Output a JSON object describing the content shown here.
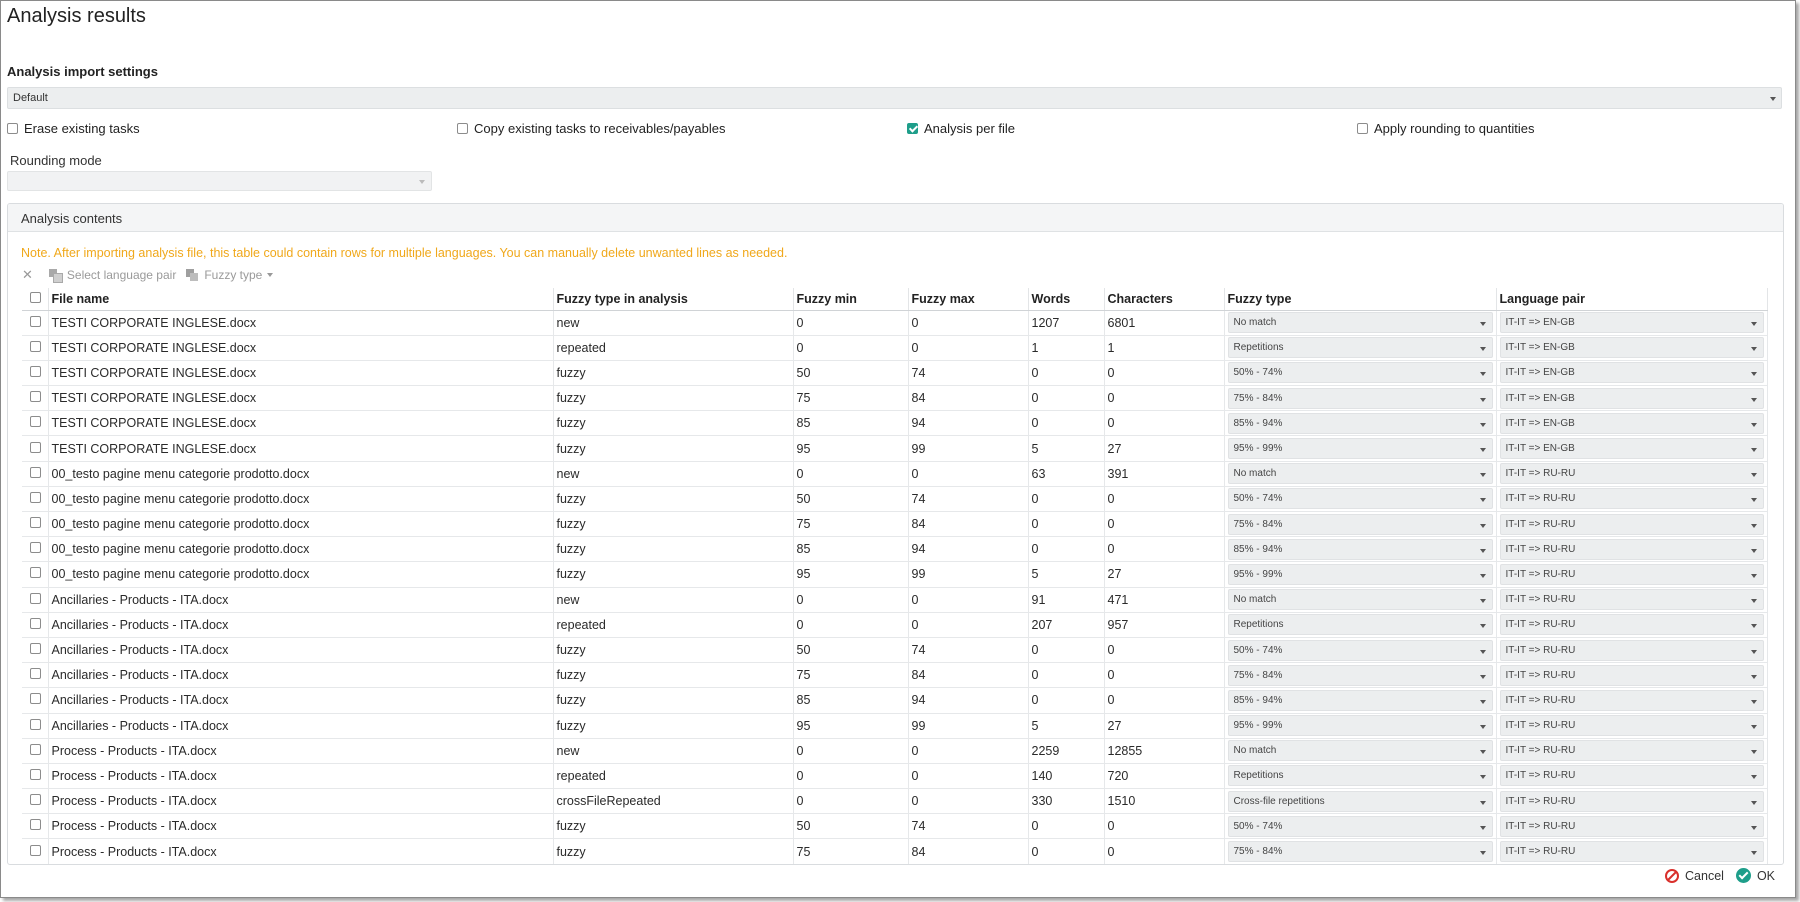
{
  "title": "Analysis results",
  "import_settings": {
    "label": "Analysis import settings",
    "value": "Default"
  },
  "options": {
    "erase_existing_tasks": {
      "label": "Erase existing tasks",
      "checked": false
    },
    "copy_existing_tasks": {
      "label": "Copy existing tasks to receivables/payables",
      "checked": false
    },
    "analysis_per_file": {
      "label": "Analysis per file",
      "checked": true
    },
    "apply_rounding": {
      "label": "Apply rounding to quantities",
      "checked": false
    }
  },
  "rounding_mode": {
    "label": "Rounding mode",
    "value": ""
  },
  "analysis_contents": {
    "header": "Analysis contents",
    "note": "Note. After importing analysis file, this table could contain rows for multiple languages. You can manually delete unwanted lines as needed.",
    "toolbar": {
      "delete_icon": "close-icon",
      "select_language_pair": "Select language pair",
      "fuzzy_type": "Fuzzy type"
    },
    "columns": [
      "File name",
      "Fuzzy type in analysis",
      "Fuzzy min",
      "Fuzzy max",
      "Words",
      "Characters",
      "Fuzzy type",
      "Language pair"
    ],
    "rows": [
      {
        "file": "TESTI CORPORATE INGLESE.docx",
        "analysis": "new",
        "min": "0",
        "max": "0",
        "words": "1207",
        "chars": "6801",
        "fuzzy_type": "No match",
        "lang": "IT-IT => EN-GB"
      },
      {
        "file": "TESTI CORPORATE INGLESE.docx",
        "analysis": "repeated",
        "min": "0",
        "max": "0",
        "words": "1",
        "chars": "1",
        "fuzzy_type": "Repetitions",
        "lang": "IT-IT => EN-GB"
      },
      {
        "file": "TESTI CORPORATE INGLESE.docx",
        "analysis": "fuzzy",
        "min": "50",
        "max": "74",
        "words": "0",
        "chars": "0",
        "fuzzy_type": "50% - 74%",
        "lang": "IT-IT => EN-GB"
      },
      {
        "file": "TESTI CORPORATE INGLESE.docx",
        "analysis": "fuzzy",
        "min": "75",
        "max": "84",
        "words": "0",
        "chars": "0",
        "fuzzy_type": "75% - 84%",
        "lang": "IT-IT => EN-GB"
      },
      {
        "file": "TESTI CORPORATE INGLESE.docx",
        "analysis": "fuzzy",
        "min": "85",
        "max": "94",
        "words": "0",
        "chars": "0",
        "fuzzy_type": "85% - 94%",
        "lang": "IT-IT => EN-GB"
      },
      {
        "file": "TESTI CORPORATE INGLESE.docx",
        "analysis": "fuzzy",
        "min": "95",
        "max": "99",
        "words": "5",
        "chars": "27",
        "fuzzy_type": "95% - 99%",
        "lang": "IT-IT => EN-GB"
      },
      {
        "file": "00_testo pagine menu categorie prodotto.docx",
        "analysis": "new",
        "min": "0",
        "max": "0",
        "words": "63",
        "chars": "391",
        "fuzzy_type": "No match",
        "lang": "IT-IT => RU-RU"
      },
      {
        "file": "00_testo pagine menu categorie prodotto.docx",
        "analysis": "fuzzy",
        "min": "50",
        "max": "74",
        "words": "0",
        "chars": "0",
        "fuzzy_type": "50% - 74%",
        "lang": "IT-IT => RU-RU"
      },
      {
        "file": "00_testo pagine menu categorie prodotto.docx",
        "analysis": "fuzzy",
        "min": "75",
        "max": "84",
        "words": "0",
        "chars": "0",
        "fuzzy_type": "75% - 84%",
        "lang": "IT-IT => RU-RU"
      },
      {
        "file": "00_testo pagine menu categorie prodotto.docx",
        "analysis": "fuzzy",
        "min": "85",
        "max": "94",
        "words": "0",
        "chars": "0",
        "fuzzy_type": "85% - 94%",
        "lang": "IT-IT => RU-RU"
      },
      {
        "file": "00_testo pagine menu categorie prodotto.docx",
        "analysis": "fuzzy",
        "min": "95",
        "max": "99",
        "words": "5",
        "chars": "27",
        "fuzzy_type": "95% - 99%",
        "lang": "IT-IT => RU-RU"
      },
      {
        "file": "Ancillaries - Products - ITA.docx",
        "analysis": "new",
        "min": "0",
        "max": "0",
        "words": "91",
        "chars": "471",
        "fuzzy_type": "No match",
        "lang": "IT-IT => RU-RU"
      },
      {
        "file": "Ancillaries - Products - ITA.docx",
        "analysis": "repeated",
        "min": "0",
        "max": "0",
        "words": "207",
        "chars": "957",
        "fuzzy_type": "Repetitions",
        "lang": "IT-IT => RU-RU"
      },
      {
        "file": "Ancillaries - Products - ITA.docx",
        "analysis": "fuzzy",
        "min": "50",
        "max": "74",
        "words": "0",
        "chars": "0",
        "fuzzy_type": "50% - 74%",
        "lang": "IT-IT => RU-RU"
      },
      {
        "file": "Ancillaries - Products - ITA.docx",
        "analysis": "fuzzy",
        "min": "75",
        "max": "84",
        "words": "0",
        "chars": "0",
        "fuzzy_type": "75% - 84%",
        "lang": "IT-IT => RU-RU"
      },
      {
        "file": "Ancillaries - Products - ITA.docx",
        "analysis": "fuzzy",
        "min": "85",
        "max": "94",
        "words": "0",
        "chars": "0",
        "fuzzy_type": "85% - 94%",
        "lang": "IT-IT => RU-RU"
      },
      {
        "file": "Ancillaries - Products - ITA.docx",
        "analysis": "fuzzy",
        "min": "95",
        "max": "99",
        "words": "5",
        "chars": "27",
        "fuzzy_type": "95% - 99%",
        "lang": "IT-IT => RU-RU"
      },
      {
        "file": "Process - Products - ITA.docx",
        "analysis": "new",
        "min": "0",
        "max": "0",
        "words": "2259",
        "chars": "12855",
        "fuzzy_type": "No match",
        "lang": "IT-IT => RU-RU"
      },
      {
        "file": "Process - Products - ITA.docx",
        "analysis": "repeated",
        "min": "0",
        "max": "0",
        "words": "140",
        "chars": "720",
        "fuzzy_type": "Repetitions",
        "lang": "IT-IT => RU-RU"
      },
      {
        "file": "Process - Products - ITA.docx",
        "analysis": "crossFileRepeated",
        "min": "0",
        "max": "0",
        "words": "330",
        "chars": "1510",
        "fuzzy_type": "Cross-file repetitions",
        "lang": "IT-IT => RU-RU"
      },
      {
        "file": "Process - Products - ITA.docx",
        "analysis": "fuzzy",
        "min": "50",
        "max": "74",
        "words": "0",
        "chars": "0",
        "fuzzy_type": "50% - 74%",
        "lang": "IT-IT => RU-RU"
      },
      {
        "file": "Process - Products - ITA.docx",
        "analysis": "fuzzy",
        "min": "75",
        "max": "84",
        "words": "0",
        "chars": "0",
        "fuzzy_type": "75% - 84%",
        "lang": "IT-IT => RU-RU"
      }
    ]
  },
  "footer": {
    "cancel": "Cancel",
    "ok": "OK"
  },
  "colors": {
    "accent": "#1e9e8a",
    "note": "#f0a81b",
    "cancel": "#d9302c"
  }
}
